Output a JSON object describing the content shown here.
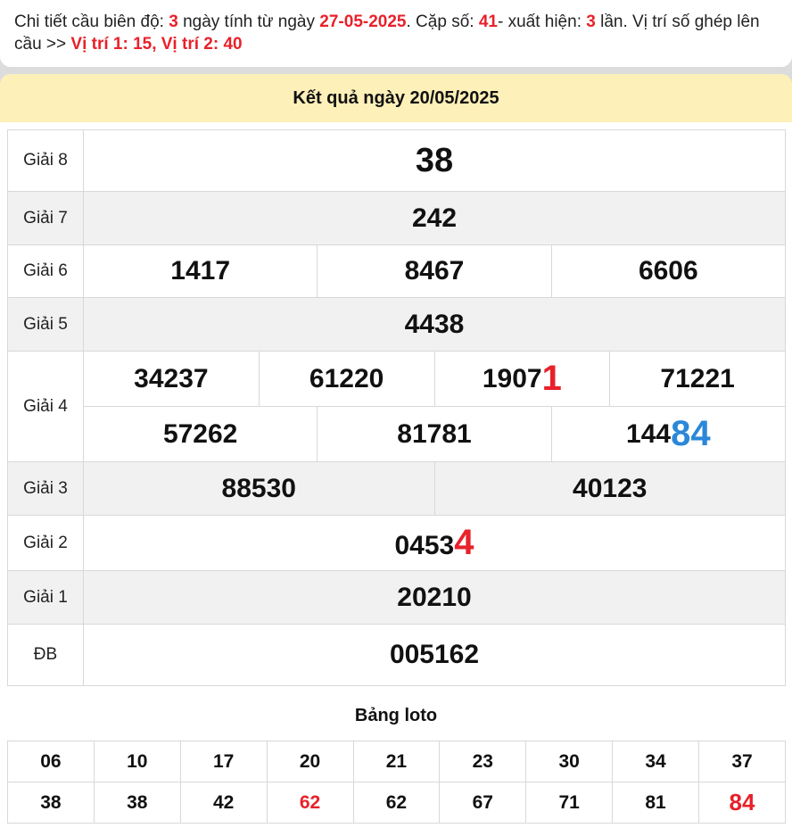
{
  "info": {
    "p1": "Chi tiết cầu biên độ: ",
    "days": "3",
    "p2": " ngày tính từ ngày ",
    "date": "27-05-2025",
    "p3": ". Cặp số: ",
    "pair": "41",
    "p4": "- xuất hiện: ",
    "times": "3",
    "p5": " lần. Vị trí số ghép lên cầu >> ",
    "positions": "Vị trí 1: 15, Vị trí 2: 40"
  },
  "header": {
    "title": "Kết quả ngày 20/05/2025"
  },
  "results": {
    "g8": {
      "label": "Giải 8",
      "values": [
        "38"
      ]
    },
    "g7": {
      "label": "Giải 7",
      "values": [
        "242"
      ]
    },
    "g6": {
      "label": "Giải 6",
      "values": [
        "1417",
        "8467",
        "6606"
      ]
    },
    "g5": {
      "label": "Giải 5",
      "values": [
        "4438"
      ]
    },
    "g4": {
      "label": "Giải 4",
      "values": [
        "34237",
        "61220",
        "1907",
        "1",
        "71221",
        "57262",
        "81781",
        "144",
        "84"
      ]
    },
    "g3": {
      "label": "Giải 3",
      "values": [
        "88530",
        "40123"
      ]
    },
    "g2": {
      "label": "Giải 2",
      "values": [
        "0453",
        "4"
      ]
    },
    "g1": {
      "label": "Giải 1",
      "values": [
        "20210"
      ]
    },
    "db": {
      "label": "ĐB",
      "values": [
        "005162"
      ]
    }
  },
  "loto": {
    "title": "Bảng loto",
    "row1": [
      "06",
      "10",
      "17",
      "20",
      "21",
      "23",
      "30",
      "34",
      "37"
    ],
    "row2": [
      "38",
      "38",
      "42",
      "62",
      "62",
      "67",
      "71",
      "81",
      "84"
    ]
  },
  "colors": {
    "highlight_red": "#e8212a",
    "highlight_blue": "#2b87d8",
    "header_bg": "#fdf0b8"
  }
}
